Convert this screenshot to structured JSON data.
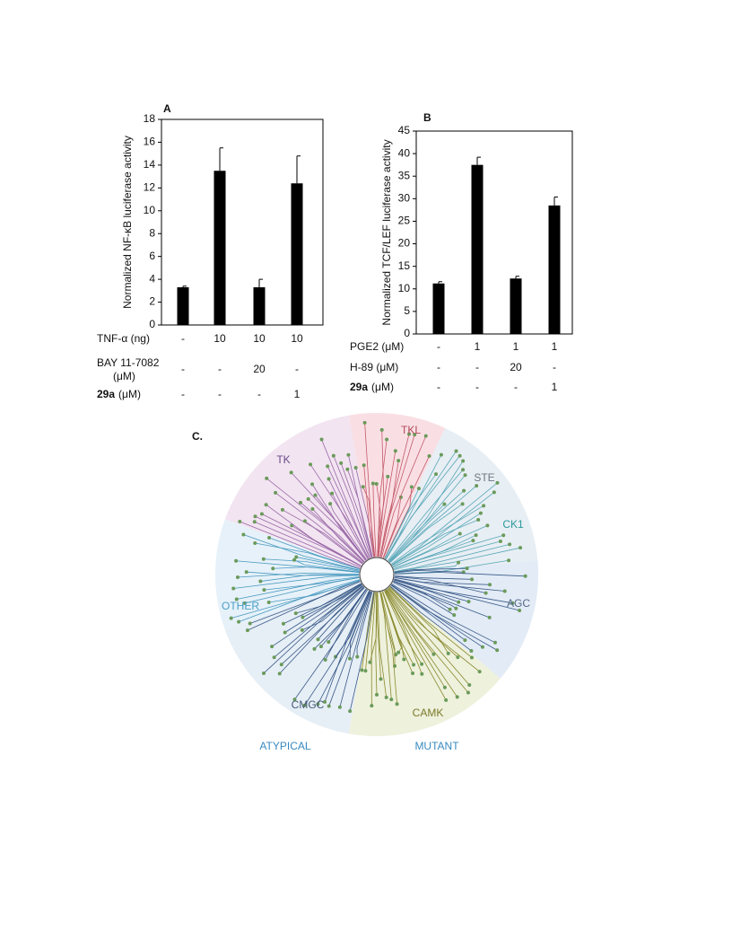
{
  "chart_data": [
    {
      "type": "bar",
      "panel": "A",
      "y_label": "Normalized NF-κB luciferase activity",
      "ylim": [
        0,
        18
      ],
      "yticks": [
        0,
        2,
        4,
        6,
        8,
        10,
        12,
        14,
        16,
        18
      ],
      "values": [
        3.3,
        13.5,
        3.3,
        12.4
      ],
      "errors": [
        0.1,
        2.0,
        0.7,
        2.4
      ],
      "color": "#000000",
      "conditions": [
        {
          "label": "TNF-α (ng)",
          "values": [
            "-",
            "10",
            "10",
            "10"
          ]
        },
        {
          "label_lines": [
            "BAY 11-7082",
            "(μM)"
          ],
          "values": [
            "-",
            "-",
            "20",
            "-"
          ]
        },
        {
          "label_bold": "29a",
          "label": "(μM)",
          "values": [
            "-",
            "-",
            "-",
            "1"
          ]
        }
      ]
    },
    {
      "type": "bar",
      "panel": "B",
      "y_label": "Normalized TCF/LEF luciferase activity",
      "ylim": [
        0,
        45
      ],
      "yticks": [
        0,
        5,
        10,
        15,
        20,
        25,
        30,
        35,
        40,
        45
      ],
      "values": [
        11.2,
        37.5,
        12.3,
        28.5
      ],
      "errors": [
        0.4,
        1.7,
        0.5,
        1.9
      ],
      "color": "#000000",
      "conditions": [
        {
          "label": "PGE2 (μM)",
          "values": [
            "-",
            "1",
            "1",
            "1"
          ]
        },
        {
          "label": "H-89 (μM)",
          "values": [
            "-",
            "-",
            "20",
            "-"
          ]
        },
        {
          "label_bold": "29a",
          "label": "(μM)",
          "values": [
            "-",
            "-",
            "-",
            "1"
          ]
        }
      ]
    }
  ],
  "figure_c": {
    "panel": "C.",
    "groups": [
      {
        "name": "TK",
        "color": "#6b4a8a"
      },
      {
        "name": "TKL",
        "color": "#b24a5a"
      },
      {
        "name": "STE",
        "color": "#6d7780"
      },
      {
        "name": "CK1",
        "color": "#2a9a9a"
      },
      {
        "name": "AGC",
        "color": "#556a88"
      },
      {
        "name": "CAMK",
        "color": "#7a7a2a"
      },
      {
        "name": "CMGC",
        "color": "#445a77"
      },
      {
        "name": "OTHER",
        "color": "#4aa0c8"
      },
      {
        "name": "ATYPICAL",
        "color": "#3a8ac0"
      },
      {
        "name": "MUTANT",
        "color": "#3a8ac0"
      }
    ]
  }
}
